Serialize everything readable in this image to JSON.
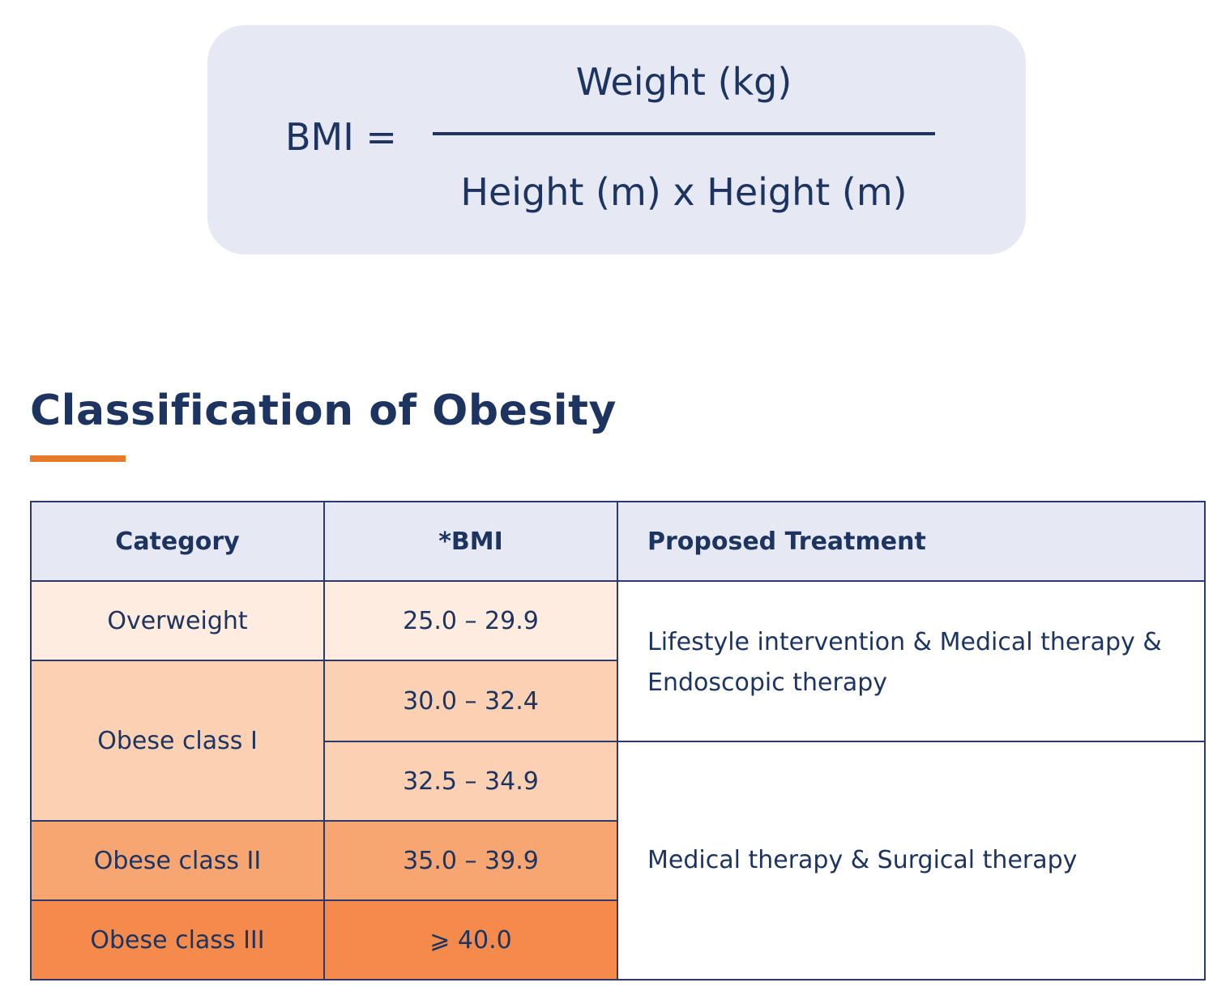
{
  "formula": {
    "lhs": "BMI =",
    "numerator": "Weight (kg)",
    "denominator": "Height (m) x Height (m)"
  },
  "section": {
    "title": "Classification of Obesity",
    "accent_color": "#e87a2c"
  },
  "table": {
    "headers": {
      "category": "Category",
      "bmi": "*BMI",
      "treatment": "Proposed Treatment"
    },
    "rows": {
      "overweight": {
        "category": "Overweight",
        "bmi": "25.0 – 29.9"
      },
      "obese1a": {
        "category": "Obese class I",
        "bmi": "30.0 – 32.4"
      },
      "obese1b": {
        "bmi": "32.5 – 34.9"
      },
      "obese2": {
        "category": "Obese class II",
        "bmi": "35.0 – 39.9"
      },
      "obese3": {
        "category": "Obese class III",
        "bmi": "⩾ 40.0"
      }
    },
    "treatments": {
      "first": "Lifestyle intervention & Medical therapy & Endoscopic therapy",
      "second": "Medical therapy & Surgical therapy"
    },
    "colors": {
      "header_bg": "#e6e9f3",
      "overweight": "#fdecdf",
      "obese_class_1": "#fcd0b2",
      "obese_class_2": "#f7a672",
      "obese_class_3": "#f48a4b",
      "text": "#1d3461"
    }
  }
}
